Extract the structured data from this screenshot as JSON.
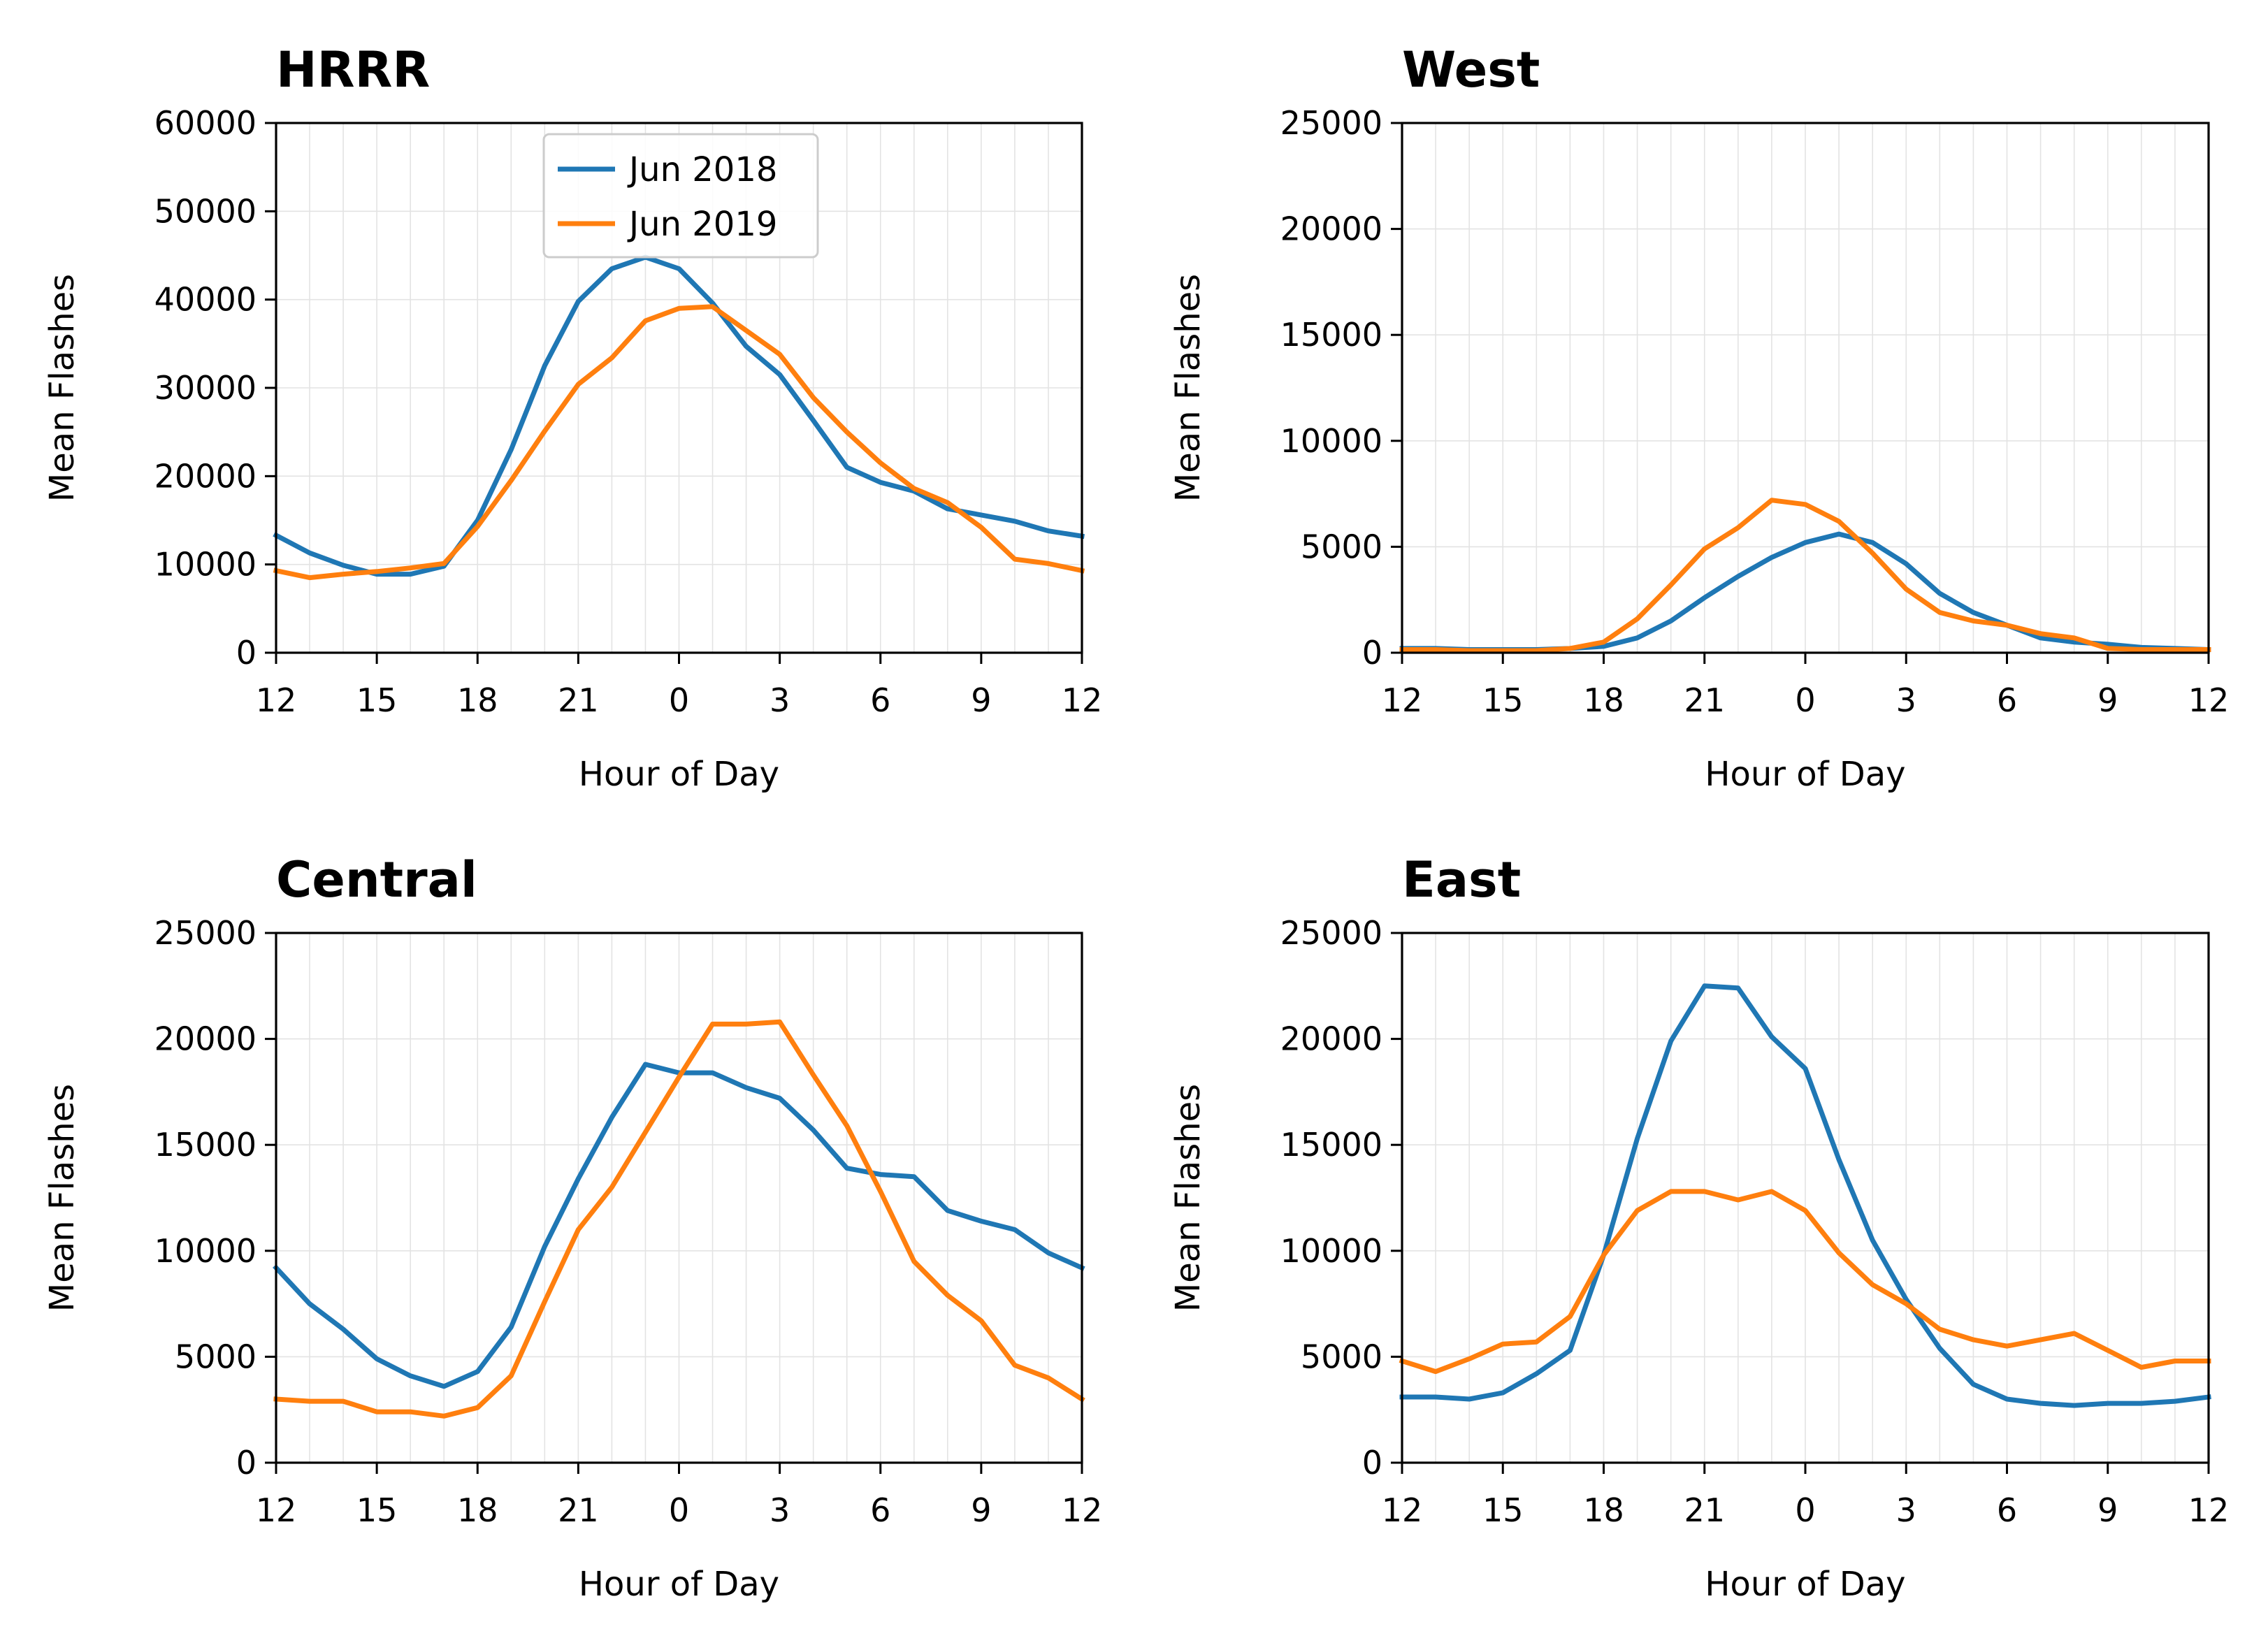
{
  "chart_data": [
    {
      "type": "line",
      "title": "HRRR",
      "xlabel": "Hour of Day",
      "ylabel": "Mean Flashes",
      "ylim": [
        0,
        60000
      ],
      "yticks": [
        0,
        10000,
        20000,
        30000,
        40000,
        50000,
        60000
      ],
      "xticks": [
        "12",
        "15",
        "18",
        "21",
        "0",
        "3",
        "6",
        "9",
        "12"
      ],
      "grid": true,
      "legend": "top-center",
      "x": [
        12,
        13,
        14,
        15,
        16,
        17,
        18,
        19,
        20,
        21,
        22,
        23,
        0,
        1,
        2,
        3,
        4,
        5,
        6,
        7,
        8,
        9,
        10,
        11,
        12
      ],
      "series": [
        {
          "name": "Jun 2018",
          "color": "#1f77b4",
          "values": [
            13300,
            11300,
            9900,
            8900,
            8900,
            9800,
            15000,
            23000,
            32500,
            39800,
            43500,
            44800,
            43500,
            39600,
            34700,
            31500,
            26300,
            21000,
            19300,
            18300,
            16300,
            15600,
            14900,
            13800,
            13200
          ]
        },
        {
          "name": "Jun 2019",
          "color": "#ff7f0e",
          "values": [
            9300,
            8500,
            8900,
            9200,
            9600,
            10100,
            14300,
            19500,
            25100,
            30400,
            33400,
            37600,
            39000,
            39200,
            36500,
            33800,
            28900,
            25000,
            21500,
            18600,
            17000,
            14200,
            10600,
            10100,
            9300
          ]
        }
      ]
    },
    {
      "type": "line",
      "title": "West",
      "xlabel": "Hour of Day",
      "ylabel": "Mean Flashes",
      "ylim": [
        0,
        25000
      ],
      "yticks": [
        0,
        5000,
        10000,
        15000,
        20000,
        25000
      ],
      "xticks": [
        "12",
        "15",
        "18",
        "21",
        "0",
        "3",
        "6",
        "9",
        "12"
      ],
      "grid": true,
      "legend": "none",
      "x": [
        12,
        13,
        14,
        15,
        16,
        17,
        18,
        19,
        20,
        21,
        22,
        23,
        0,
        1,
        2,
        3,
        4,
        5,
        6,
        7,
        8,
        9,
        10,
        11,
        12
      ],
      "series": [
        {
          "name": "Jun 2018",
          "color": "#1f77b4",
          "values": [
            200,
            200,
            150,
            150,
            150,
            200,
            300,
            700,
            1500,
            2600,
            3600,
            4500,
            5200,
            5600,
            5200,
            4200,
            2800,
            1900,
            1300,
            700,
            500,
            400,
            250,
            200,
            150
          ]
        },
        {
          "name": "Jun 2019",
          "color": "#ff7f0e",
          "values": [
            150,
            150,
            100,
            100,
            100,
            200,
            500,
            1600,
            3200,
            4900,
            5900,
            7200,
            7000,
            6200,
            4700,
            3000,
            1900,
            1500,
            1300,
            900,
            700,
            200,
            150,
            150,
            150
          ]
        }
      ]
    },
    {
      "type": "line",
      "title": "Central",
      "xlabel": "Hour of Day",
      "ylabel": "Mean Flashes",
      "ylim": [
        0,
        25000
      ],
      "yticks": [
        0,
        5000,
        10000,
        15000,
        20000,
        25000
      ],
      "xticks": [
        "12",
        "15",
        "18",
        "21",
        "0",
        "3",
        "6",
        "9",
        "12"
      ],
      "grid": true,
      "legend": "none",
      "x": [
        12,
        13,
        14,
        15,
        16,
        17,
        18,
        19,
        20,
        21,
        22,
        23,
        0,
        1,
        2,
        3,
        4,
        5,
        6,
        7,
        8,
        9,
        10,
        11,
        12
      ],
      "series": [
        {
          "name": "Jun 2018",
          "color": "#1f77b4",
          "values": [
            9200,
            7500,
            6300,
            4900,
            4100,
            3600,
            4300,
            6400,
            10200,
            13400,
            16300,
            18800,
            18400,
            18400,
            17700,
            17200,
            15700,
            13900,
            13600,
            13500,
            11900,
            11400,
            11000,
            9900,
            9200
          ]
        },
        {
          "name": "Jun 2019",
          "color": "#ff7f0e",
          "values": [
            3000,
            2900,
            2900,
            2400,
            2400,
            2200,
            2600,
            4100,
            7600,
            11000,
            13000,
            15600,
            18200,
            20700,
            20700,
            20800,
            18300,
            15900,
            12800,
            9500,
            7900,
            6700,
            4600,
            4000,
            3000
          ]
        }
      ]
    },
    {
      "type": "line",
      "title": "East",
      "xlabel": "Hour of Day",
      "ylabel": "Mean Flashes",
      "ylim": [
        0,
        25000
      ],
      "yticks": [
        0,
        5000,
        10000,
        15000,
        20000,
        25000
      ],
      "xticks": [
        "12",
        "15",
        "18",
        "21",
        "0",
        "3",
        "6",
        "9",
        "12"
      ],
      "grid": true,
      "legend": "none",
      "x": [
        12,
        13,
        14,
        15,
        16,
        17,
        18,
        19,
        20,
        21,
        22,
        23,
        0,
        1,
        2,
        3,
        4,
        5,
        6,
        7,
        8,
        9,
        10,
        11,
        12
      ],
      "series": [
        {
          "name": "Jun 2018",
          "color": "#1f77b4",
          "values": [
            3100,
            3100,
            3000,
            3300,
            4200,
            5300,
            9800,
            15300,
            19900,
            22500,
            22400,
            20100,
            18600,
            14300,
            10500,
            7700,
            5400,
            3700,
            3000,
            2800,
            2700,
            2800,
            2800,
            2900,
            3100
          ]
        },
        {
          "name": "Jun 2019",
          "color": "#ff7f0e",
          "values": [
            4800,
            4300,
            4900,
            5600,
            5700,
            6900,
            9800,
            11900,
            12800,
            12800,
            12400,
            12800,
            11900,
            9900,
            8400,
            7500,
            6300,
            5800,
            5500,
            5800,
            6100,
            5300,
            4500,
            4800,
            4800
          ]
        }
      ]
    }
  ]
}
